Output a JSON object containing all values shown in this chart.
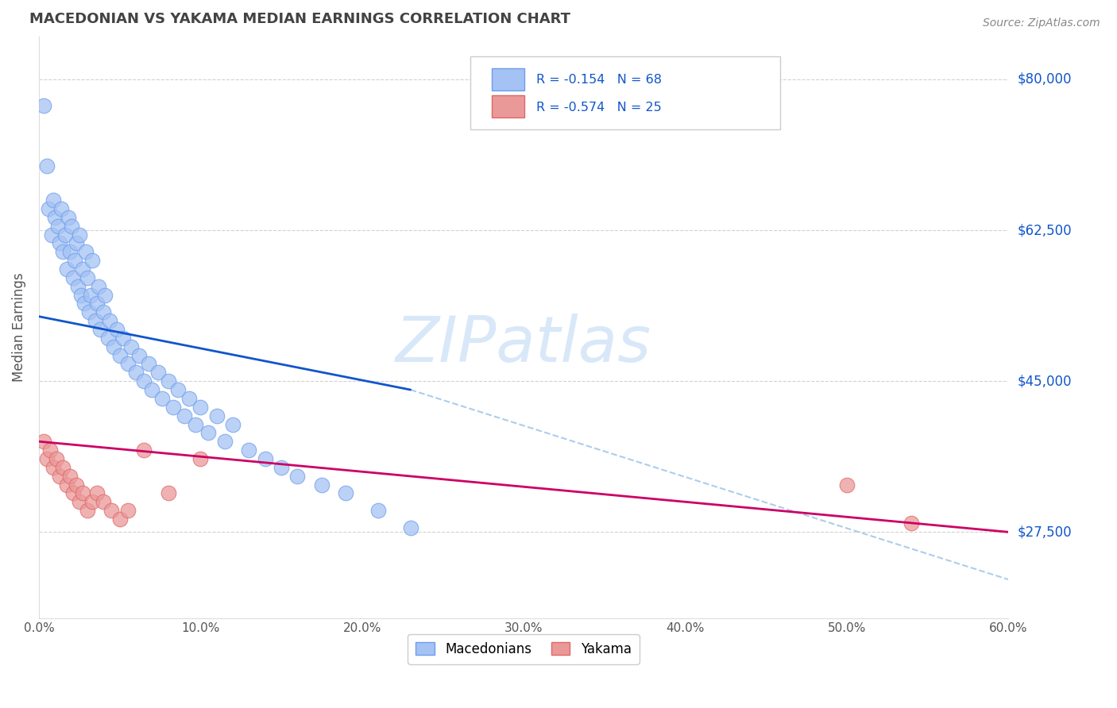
{
  "title": "MACEDONIAN VS YAKAMA MEDIAN EARNINGS CORRELATION CHART",
  "source": "Source: ZipAtlas.com",
  "ylabel": "Median Earnings",
  "xlim": [
    0.0,
    0.6
  ],
  "ylim": [
    17500,
    85000
  ],
  "xtick_labels": [
    "0.0%",
    "10.0%",
    "20.0%",
    "30.0%",
    "40.0%",
    "50.0%",
    "60.0%"
  ],
  "xtick_values": [
    0.0,
    0.1,
    0.2,
    0.3,
    0.4,
    0.5,
    0.6
  ],
  "ytick_labels": [
    "$27,500",
    "$45,000",
    "$62,500",
    "$80,000"
  ],
  "ytick_values": [
    27500,
    45000,
    62500,
    80000
  ],
  "macedonian_R": -0.154,
  "macedonian_N": 68,
  "yakama_R": -0.574,
  "yakama_N": 25,
  "blue_color": "#a4c2f4",
  "blue_edge_color": "#6d9eeb",
  "pink_color": "#ea9999",
  "pink_edge_color": "#e06666",
  "blue_line_color": "#1155cc",
  "pink_line_color": "#cc0066",
  "dashed_line_color": "#9fc5e8",
  "grid_color": "#cccccc",
  "title_color": "#434343",
  "axis_tick_color": "#555555",
  "right_label_color": "#1155cc",
  "watermark_color": "#d9e8f8",
  "background_color": "#ffffff",
  "mac_x": [
    0.003,
    0.005,
    0.006,
    0.008,
    0.009,
    0.01,
    0.012,
    0.013,
    0.014,
    0.015,
    0.016,
    0.017,
    0.018,
    0.019,
    0.02,
    0.021,
    0.022,
    0.023,
    0.024,
    0.025,
    0.026,
    0.027,
    0.028,
    0.029,
    0.03,
    0.031,
    0.032,
    0.033,
    0.035,
    0.036,
    0.037,
    0.038,
    0.04,
    0.041,
    0.043,
    0.044,
    0.046,
    0.048,
    0.05,
    0.052,
    0.055,
    0.057,
    0.06,
    0.062,
    0.065,
    0.068,
    0.07,
    0.074,
    0.076,
    0.08,
    0.083,
    0.086,
    0.09,
    0.093,
    0.097,
    0.1,
    0.105,
    0.11,
    0.115,
    0.12,
    0.13,
    0.14,
    0.15,
    0.16,
    0.175,
    0.19,
    0.21,
    0.23
  ],
  "mac_y": [
    77000,
    70000,
    65000,
    62000,
    66000,
    64000,
    63000,
    61000,
    65000,
    60000,
    62000,
    58000,
    64000,
    60000,
    63000,
    57000,
    59000,
    61000,
    56000,
    62000,
    55000,
    58000,
    54000,
    60000,
    57000,
    53000,
    55000,
    59000,
    52000,
    54000,
    56000,
    51000,
    53000,
    55000,
    50000,
    52000,
    49000,
    51000,
    48000,
    50000,
    47000,
    49000,
    46000,
    48000,
    45000,
    47000,
    44000,
    46000,
    43000,
    45000,
    42000,
    44000,
    41000,
    43000,
    40000,
    42000,
    39000,
    41000,
    38000,
    40000,
    37000,
    36000,
    35000,
    34000,
    33000,
    32000,
    30000,
    28000
  ],
  "yak_x": [
    0.003,
    0.005,
    0.007,
    0.009,
    0.011,
    0.013,
    0.015,
    0.017,
    0.019,
    0.021,
    0.023,
    0.025,
    0.027,
    0.03,
    0.033,
    0.036,
    0.04,
    0.045,
    0.05,
    0.055,
    0.065,
    0.08,
    0.1,
    0.5,
    0.54
  ],
  "yak_y": [
    38000,
    36000,
    37000,
    35000,
    36000,
    34000,
    35000,
    33000,
    34000,
    32000,
    33000,
    31000,
    32000,
    30000,
    31000,
    32000,
    31000,
    30000,
    29000,
    30000,
    37000,
    32000,
    36000,
    33000,
    28500
  ]
}
